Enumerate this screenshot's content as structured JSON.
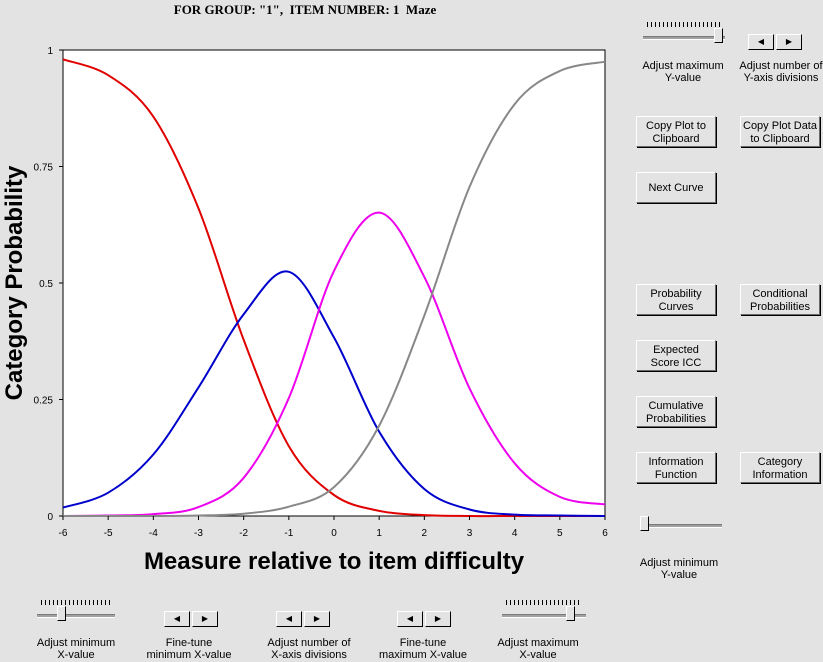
{
  "title": "FOR GROUP: \"1\",  ITEM NUMBER: 1  Maze",
  "colors": {
    "background": "#e3e3e3",
    "plot_background": "#ffffff",
    "curve_0": "#e00000",
    "curve_1": "#0000cc",
    "curve_2": "#ee00ee",
    "curve_3": "#888888"
  },
  "chart_data": {
    "type": "line",
    "xlabel": "Measure relative to item difficulty",
    "ylabel": "Category Probability",
    "xlim": [
      -6,
      6
    ],
    "ylim": [
      0,
      1
    ],
    "x_ticks": [
      "-6",
      "-5",
      "-4",
      "-3",
      "-2",
      "-1",
      "0",
      "1",
      "2",
      "3",
      "4",
      "5",
      "6"
    ],
    "y_ticks": [
      "0",
      "0.25",
      "0.5",
      "0.75",
      "1"
    ],
    "grid": false,
    "x": [
      -6,
      -5,
      -4,
      -3,
      -2,
      -1,
      0,
      1,
      2,
      3,
      4,
      5,
      6
    ],
    "series": [
      {
        "color": "#e00000",
        "values": [
          0.98,
          0.946,
          0.857,
          0.66,
          0.378,
          0.15,
          0.045,
          0.011,
          0.002,
          0.0,
          0.0,
          0.0,
          0.0
        ]
      },
      {
        "color": "#0000cc",
        "values": [
          0.018,
          0.05,
          0.132,
          0.276,
          0.433,
          0.524,
          0.383,
          0.181,
          0.058,
          0.014,
          0.003,
          0.001,
          0.0
        ]
      },
      {
        "color": "#ee00ee",
        "values": [
          0.0,
          0.001,
          0.004,
          0.019,
          0.082,
          0.253,
          0.526,
          0.651,
          0.513,
          0.274,
          0.113,
          0.041,
          0.025
        ]
      },
      {
        "color": "#888888",
        "values": [
          0.0,
          0.0,
          0.0,
          0.001,
          0.005,
          0.02,
          0.062,
          0.194,
          0.43,
          0.706,
          0.884,
          0.955,
          0.975
        ]
      }
    ]
  },
  "controls": {
    "adjust_max_y": "Adjust maximum\nY-value",
    "adjust_y_div": "Adjust number of\nY-axis divisions",
    "copy_plot": "Copy Plot to\nClipboard",
    "copy_data": "Copy Plot Data\nto Clipboard",
    "next_curve": "Next Curve",
    "prob_curves": "Probability\nCurves",
    "cond_prob": "Conditional\nProbabilities",
    "expected_icc": "Expected\nScore ICC",
    "cumulative": "Cumulative\nProbabilities",
    "info_function": "Information\nFunction",
    "category_info": "Category\nInformation",
    "adjust_min_y": "Adjust minimum\nY-value",
    "adjust_min_x": "Adjust minimum\nX-value",
    "finetune_min_x": "Fine-tune\nminimum X-value",
    "adjust_x_div": "Adjust number of\nX-axis divisions",
    "finetune_max_x": "Fine-tune\nmaximum X-value",
    "adjust_max_x": "Adjust maximum\nX-value",
    "arrow_left": "◀",
    "arrow_right": "▶"
  }
}
